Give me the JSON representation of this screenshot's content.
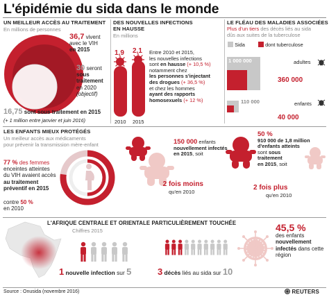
{
  "title": "L'épidémie du sida dans le monde",
  "col1": {
    "heading": "UN MEILLEUR ACCÈS AU TRAITEMENT",
    "sub": "En millions de personnes",
    "v1_num": "36,7",
    "v1_text_a": "vivent",
    "v1_text_b": "avec le VIH",
    "v1_text_c": "en 2015",
    "v2_num": "30",
    "v2_text_a": "seront",
    "v2_text_b": "sous",
    "v2_text_c": "traitement",
    "v2_text_d": "en 2020",
    "v2_text_e": "(objectif)",
    "v3_num": "16,75",
    "v3_text": "sont sous traitement en 2015",
    "v3_note": "(+ 1 million entre janvier et juin 2016)",
    "values": {
      "living": 36.7,
      "target_2020": 30,
      "treated_2015": 16.75
    }
  },
  "col2": {
    "heading_a": "DES NOUVELLES INFECTIONS",
    "heading_b": "EN HAUSSE",
    "sub": "En millions",
    "bar1_value": "1,9",
    "bar2_value": "2,1",
    "bar1_year": "2010",
    "bar2_year": "2015",
    "values": [
      1.9,
      2.1
    ],
    "p1": "Entre 2010 et 2015,",
    "p2": "les nouvelles infections",
    "p3a": "sont ",
    "p3b": "en hausse",
    "p3c": " (+ 10,5 %)",
    "p4": "notamment chez",
    "p5": "les personnes s'injectant",
    "p6a": "des drogues",
    "p6b": " (+ 36,5 %)",
    "p7": "et chez les hommes",
    "p8": "ayant des rapports",
    "p9a": "homosexuels",
    "p9b": " (+ 12 %)"
  },
  "col3": {
    "heading": "LE FLÉAU DES MALADIES ASSOCIÉES",
    "intro_a": "Plus d'un tiers",
    "intro_b": " des décès liés au sida",
    "intro_c": "dûs aux suites de la tuberculose",
    "legend_sida": "Sida",
    "legend_tb": "dont tuberculose",
    "adults_total": "1 000 000",
    "adults_label": "adultes",
    "adults_tb": "360 000",
    "children_total": "110 000",
    "children_label": "enfants",
    "children_tb": "40 000",
    "values": {
      "adults": [
        1000000,
        360000
      ],
      "children": [
        110000,
        40000
      ]
    },
    "colors": {
      "sida": "#c8c8c8",
      "tb": "#c4202e"
    }
  },
  "section2": {
    "heading": "LES ENFANTS MIEUX PROTÉGÉS",
    "sub_a": "Un meilleur accès aux médicaments",
    "sub_b": "pour prévenir la transmission mère-enfant",
    "pct_a": "77 %",
    "pct_a_text": " des femmes",
    "l2": "enceintes atteintes",
    "l3": "du VIH avaient accès",
    "l4": "au traitement",
    "l5": "préventif en 2015",
    "contre": "contre ",
    "pct_b": "50 %",
    "en2010": "en 2010",
    "donut_values": {
      "2015": 77,
      "2010": 50
    },
    "baby1_num": "150 000",
    "baby1_a": "enfants",
    "baby1_b": "nouvellement infectés",
    "baby1_c": "en 2015",
    "baby1_d": ", soit",
    "baby1_fois": "2 fois moins",
    "baby1_qu": "qu'en 2010",
    "baby2_pct": "50 %",
    "baby2_a": "910 000 de 1,8 million",
    "baby2_b": "d'enfants atteints",
    "baby2_c": "sont ",
    "baby2_d": "sous",
    "baby2_e": "traitement",
    "baby2_f": "en 2015",
    "baby2_g": ", soit",
    "baby2_fois": "2 fois plus",
    "baby2_qu": "qu'en 2010"
  },
  "section3": {
    "heading": "L'AFRIQUE CENTRALE ET ORIENTALE PARTICULIÈREMENT TOUCHÉE",
    "sub": "Chiffres 2015",
    "s1_num": "1",
    "s1_text": " nouvelle infection ",
    "s1_sur": "sur ",
    "s1_den": "5",
    "s2_num": "3",
    "s2_text": " décès ",
    "s2_rest": "liés au sida sur ",
    "s2_den": "10",
    "pct": "45,5 %",
    "pct_a": "des enfants",
    "pct_b": "nouvellement",
    "pct_c": "infectés",
    "pct_d": " dans cette région",
    "ratios": {
      "infections": [
        1,
        5
      ],
      "deaths": [
        3,
        10
      ],
      "children_pct": 45.5
    }
  },
  "footer": {
    "source": "Source : Onusida (novembre 2016)",
    "brand": "REUTERS"
  }
}
